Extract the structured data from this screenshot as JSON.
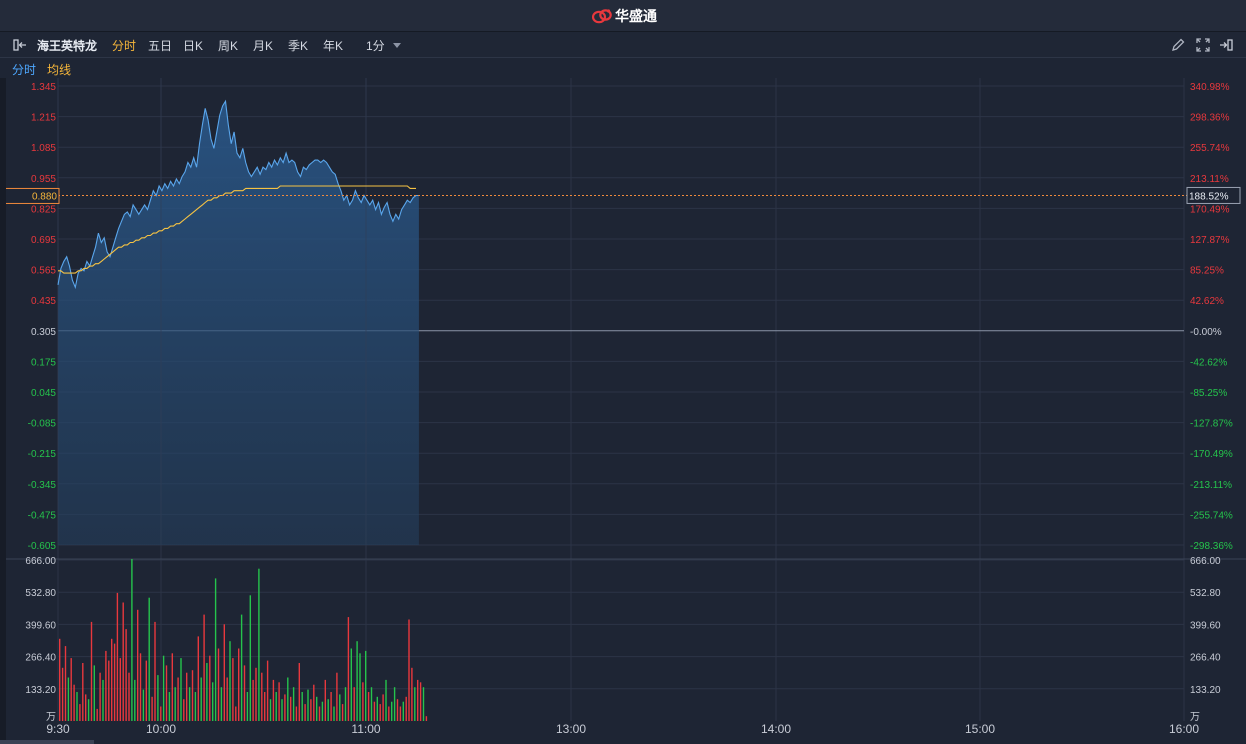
{
  "brand": {
    "name": "华盛通",
    "logo_icon": "huasheng-logo-icon"
  },
  "toolbar": {
    "stock_name": "海王英特龙",
    "tabs": [
      "分时",
      "五日",
      "日K",
      "周K",
      "月K",
      "季K",
      "年K"
    ],
    "active_tab": "分时",
    "period": "1分"
  },
  "legend": {
    "price_line": "分时",
    "avg_line": "均线"
  },
  "colors": {
    "up": "#e8383d",
    "down": "#25c44c",
    "price_line": "#5aa6ec",
    "avg_line": "#f6c343",
    "ref_line": "#8a93a6",
    "cursor": "#f08a3c",
    "background": "#1e2534",
    "grid": "#2c3446"
  },
  "chart_data": {
    "type": "line",
    "price_axis": {
      "ticks": [
        "1.345",
        "1.215",
        "1.085",
        "0.955",
        "0.825",
        "0.695",
        "0.565",
        "0.435",
        "0.305",
        "0.175",
        "0.045",
        "-0.085",
        "-0.215",
        "-0.345",
        "-0.475",
        "-0.605"
      ],
      "values": [
        1.345,
        1.215,
        1.085,
        0.955,
        0.825,
        0.695,
        0.565,
        0.435,
        0.305,
        0.175,
        0.045,
        -0.085,
        -0.215,
        -0.345,
        -0.475,
        -0.605
      ],
      "reference": 0.305,
      "ylim": [
        -0.605,
        1.345
      ]
    },
    "pct_axis": {
      "ticks": [
        "340.98%",
        "298.36%",
        "255.74%",
        "213.11%",
        "170.49%",
        "127.87%",
        "85.25%",
        "42.62%",
        "-0.00%",
        "-42.62%",
        "-85.25%",
        "-127.87%",
        "-170.49%",
        "-213.11%",
        "-255.74%",
        "-298.36%"
      ]
    },
    "cursor": {
      "price": "0.880",
      "pct": "188.52%",
      "value": 0.88
    },
    "time_axis": {
      "labels": [
        "9:30",
        "10:00",
        "11:00",
        "13:00",
        "14:00",
        "15:00",
        "16:00"
      ],
      "total_minutes": 390
    },
    "series": [
      {
        "name": "分时",
        "values": [
          0.5,
          0.57,
          0.6,
          0.62,
          0.58,
          0.52,
          0.49,
          0.55,
          0.57,
          0.56,
          0.6,
          0.58,
          0.62,
          0.66,
          0.72,
          0.68,
          0.7,
          0.64,
          0.62,
          0.66,
          0.7,
          0.74,
          0.77,
          0.8,
          0.81,
          0.79,
          0.84,
          0.82,
          0.8,
          0.82,
          0.84,
          0.82,
          0.86,
          0.9,
          0.88,
          0.92,
          0.9,
          0.93,
          0.91,
          0.94,
          0.92,
          0.95,
          0.93,
          0.96,
          0.98,
          1.02,
          1.0,
          1.04,
          1.0,
          1.1,
          1.18,
          1.25,
          1.2,
          1.12,
          1.08,
          1.15,
          1.22,
          1.26,
          1.28,
          1.18,
          1.1,
          1.15,
          1.06,
          1.04,
          1.08,
          1.02,
          0.98,
          0.96,
          0.98,
          1.0,
          0.97,
          1.0,
          0.99,
          1.02,
          1.0,
          1.03,
          1.01,
          1.04,
          1.02,
          1.06,
          1.02,
          1.03,
          1.02,
          0.98,
          0.96,
          1.0,
          0.99,
          1.01,
          1.02,
          1.03,
          1.03,
          1.02,
          1.03,
          1.02,
          1.0,
          0.98,
          0.97,
          0.93,
          0.9,
          0.86,
          0.88,
          0.84,
          0.86,
          0.9,
          0.87,
          0.85,
          0.88,
          0.86,
          0.84,
          0.86,
          0.82,
          0.85,
          0.8,
          0.83,
          0.85,
          0.8,
          0.77,
          0.8,
          0.78,
          0.82,
          0.84,
          0.86,
          0.85,
          0.87,
          0.88,
          0.88
        ],
        "color": "#5aa6ec"
      },
      {
        "name": "均线",
        "values": [
          0.56,
          0.56,
          0.55,
          0.55,
          0.55,
          0.55,
          0.55,
          0.56,
          0.56,
          0.57,
          0.57,
          0.58,
          0.58,
          0.59,
          0.59,
          0.6,
          0.61,
          0.62,
          0.63,
          0.64,
          0.65,
          0.66,
          0.66,
          0.67,
          0.67,
          0.68,
          0.68,
          0.69,
          0.69,
          0.7,
          0.7,
          0.71,
          0.71,
          0.72,
          0.72,
          0.73,
          0.73,
          0.74,
          0.74,
          0.75,
          0.75,
          0.76,
          0.76,
          0.77,
          0.78,
          0.79,
          0.8,
          0.81,
          0.82,
          0.83,
          0.84,
          0.85,
          0.86,
          0.86,
          0.87,
          0.87,
          0.88,
          0.88,
          0.89,
          0.89,
          0.89,
          0.9,
          0.9,
          0.9,
          0.9,
          0.91,
          0.91,
          0.91,
          0.91,
          0.91,
          0.91,
          0.91,
          0.91,
          0.91,
          0.91,
          0.91,
          0.91,
          0.92,
          0.92,
          0.92,
          0.92,
          0.92,
          0.92,
          0.92,
          0.92,
          0.92,
          0.92,
          0.92,
          0.92,
          0.92,
          0.92,
          0.92,
          0.92,
          0.92,
          0.92,
          0.92,
          0.92,
          0.92,
          0.92,
          0.92,
          0.92,
          0.92,
          0.92,
          0.92,
          0.92,
          0.92,
          0.92,
          0.92,
          0.92,
          0.92,
          0.92,
          0.92,
          0.92,
          0.92,
          0.92,
          0.92,
          0.92,
          0.92,
          0.92,
          0.92,
          0.92,
          0.92,
          0.91,
          0.91,
          0.91
        ],
        "color": "#f6c343"
      }
    ],
    "volume": {
      "unit": "万",
      "ticks": [
        "666.00",
        "532.80",
        "399.60",
        "266.40",
        "133.20"
      ],
      "ylim": [
        0,
        666
      ],
      "values": [
        340,
        220,
        310,
        180,
        260,
        150,
        120,
        70,
        240,
        110,
        90,
        410,
        230,
        50,
        200,
        170,
        290,
        250,
        340,
        320,
        530,
        260,
        490,
        380,
        200,
        670,
        170,
        460,
        280,
        130,
        250,
        510,
        100,
        410,
        190,
        60,
        270,
        230,
        120,
        280,
        140,
        180,
        260,
        90,
        200,
        140,
        210,
        120,
        350,
        180,
        440,
        240,
        270,
        160,
        590,
        300,
        140,
        400,
        180,
        330,
        260,
        60,
        300,
        440,
        230,
        120,
        520,
        170,
        220,
        630,
        200,
        120,
        250,
        90,
        170,
        120,
        160,
        90,
        110,
        180,
        100,
        140,
        60,
        240,
        120,
        70,
        130,
        90,
        150,
        100,
        60,
        80,
        170,
        90,
        120,
        60,
        200,
        110,
        70,
        140,
        430,
        300,
        140,
        330,
        280,
        160,
        290,
        120,
        140,
        80,
        100,
        70,
        110,
        170,
        60,
        80,
        140,
        90,
        60,
        80,
        100,
        420,
        220,
        140,
        170,
        160,
        140,
        20
      ],
      "colors": [
        "up",
        "up",
        "up",
        "down",
        "up",
        "up",
        "down",
        "up",
        "up",
        "up",
        "down",
        "up",
        "down",
        "up",
        "up",
        "down",
        "up",
        "up",
        "up",
        "up",
        "up",
        "up",
        "up",
        "up",
        "up",
        "down",
        "down",
        "up",
        "up",
        "down",
        "up",
        "down",
        "up",
        "up",
        "down",
        "up",
        "down",
        "up",
        "down",
        "up",
        "down",
        "up",
        "down",
        "up",
        "up",
        "down",
        "up",
        "down",
        "up",
        "down",
        "up",
        "down",
        "up",
        "down",
        "down",
        "up",
        "down",
        "up",
        "up",
        "down",
        "up",
        "up",
        "up",
        "down",
        "up",
        "down",
        "down",
        "up",
        "up",
        "down",
        "up",
        "up",
        "up",
        "down",
        "up",
        "down",
        "up",
        "down",
        "up",
        "down",
        "up",
        "down",
        "up",
        "up",
        "down",
        "up",
        "down",
        "up",
        "up",
        "down",
        "up",
        "down",
        "up",
        "down",
        "up",
        "down",
        "up",
        "down",
        "up",
        "down",
        "up",
        "down",
        "up",
        "down",
        "down",
        "up",
        "down",
        "up",
        "down",
        "up",
        "down",
        "up",
        "up",
        "down",
        "up",
        "down",
        "down",
        "up",
        "up",
        "down",
        "up",
        "up",
        "up",
        "down",
        "up",
        "up",
        "down",
        "up",
        "up"
      ]
    }
  }
}
